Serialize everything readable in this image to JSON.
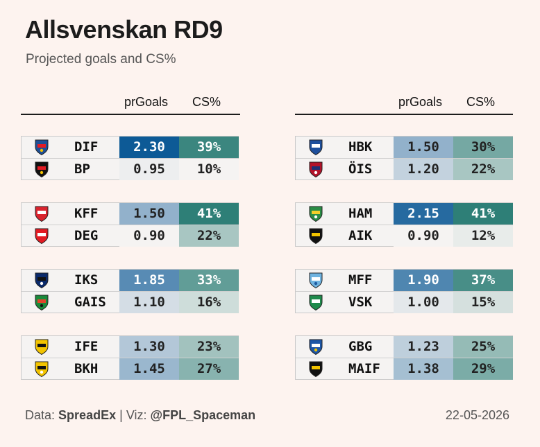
{
  "title": "Allsvenskan RD9",
  "subtitle": "Projected goals and CS%",
  "columns": {
    "goals": "prGoals",
    "cs": "CS%"
  },
  "footer": {
    "data_label": "Data:",
    "source": "SpreadEx",
    "sep": "|",
    "viz_label": "Viz:",
    "author": "@FPL_Spaceman",
    "date": "22-05-2026"
  },
  "chart_data": {
    "type": "table",
    "title": "Allsvenskan RD9",
    "subtitle": "Projected goals and CS%",
    "columns": [
      "prGoals",
      "CS%"
    ],
    "matches": [
      {
        "panel": "left",
        "slot": 0,
        "teams": [
          {
            "team": "DIF",
            "goals": "2.30",
            "cs": "39%",
            "g": 2.3,
            "c": 39,
            "logo": "djurgarden-crest-icon",
            "colors": [
              "#1d4f96",
              "#e31b23",
              "#f2c100"
            ]
          },
          {
            "team": "BP",
            "goals": "0.95",
            "cs": "10%",
            "g": 0.95,
            "c": 10,
            "logo": "brommapojkarna-crest-icon",
            "colors": [
              "#111111",
              "#e31b23",
              "#f2c100"
            ]
          }
        ]
      },
      {
        "panel": "left",
        "slot": 1,
        "teams": [
          {
            "team": "KFF",
            "goals": "1.50",
            "cs": "41%",
            "g": 1.5,
            "c": 41,
            "logo": "kalmar-crest-icon",
            "colors": [
              "#d9232d",
              "#ffffff",
              "#d9232d"
            ]
          },
          {
            "team": "DEG",
            "goals": "0.90",
            "cs": "22%",
            "g": 0.9,
            "c": 22,
            "logo": "degerfors-crest-icon",
            "colors": [
              "#e31b23",
              "#ffffff",
              "#e31b23"
            ]
          }
        ]
      },
      {
        "panel": "left",
        "slot": 2,
        "teams": [
          {
            "team": "IKS",
            "goals": "1.85",
            "cs": "33%",
            "g": 1.85,
            "c": 33,
            "logo": "sirius-crest-icon",
            "colors": [
              "#0b2a6b",
              "#111111",
              "#ffffff"
            ]
          },
          {
            "team": "GAIS",
            "goals": "1.10",
            "cs": "16%",
            "g": 1.1,
            "c": 16,
            "logo": "gais-crest-icon",
            "colors": [
              "#1a8a3a",
              "#e2432a",
              "#111111"
            ]
          }
        ]
      },
      {
        "panel": "left",
        "slot": 3,
        "teams": [
          {
            "team": "IFE",
            "goals": "1.30",
            "cs": "23%",
            "g": 1.3,
            "c": 23,
            "logo": "elfsborg-crest-icon",
            "colors": [
              "#f3c400",
              "#111111",
              "#f3c400"
            ]
          },
          {
            "team": "BKH",
            "goals": "1.45",
            "cs": "27%",
            "g": 1.45,
            "c": 27,
            "logo": "hacken-crest-icon",
            "colors": [
              "#f3c400",
              "#111111",
              "#ffffff"
            ]
          }
        ]
      },
      {
        "panel": "right",
        "slot": 0,
        "teams": [
          {
            "team": "HBK",
            "goals": "1.50",
            "cs": "30%",
            "g": 1.5,
            "c": 30,
            "logo": "halmstad-crest-icon",
            "colors": [
              "#1e4f9c",
              "#ffffff",
              "#1e4f9c"
            ]
          },
          {
            "team": "ÖIS",
            "goals": "1.20",
            "cs": "22%",
            "g": 1.2,
            "c": 22,
            "logo": "orgryte-crest-icon",
            "colors": [
              "#b3132a",
              "#1c2f73",
              "#ffffff"
            ]
          }
        ]
      },
      {
        "panel": "right",
        "slot": 1,
        "teams": [
          {
            "team": "HAM",
            "goals": "2.15",
            "cs": "41%",
            "g": 2.15,
            "c": 41,
            "logo": "hammarby-crest-icon",
            "colors": [
              "#2a8c45",
              "#f3cf2a",
              "#ffffff"
            ]
          },
          {
            "team": "AIK",
            "goals": "0.90",
            "cs": "12%",
            "g": 0.9,
            "c": 12,
            "logo": "aik-crest-icon",
            "colors": [
              "#111111",
              "#f3c400",
              "#111111"
            ]
          }
        ]
      },
      {
        "panel": "right",
        "slot": 2,
        "teams": [
          {
            "team": "MFF",
            "goals": "1.90",
            "cs": "37%",
            "g": 1.9,
            "c": 37,
            "logo": "malmo-crest-icon",
            "colors": [
              "#6fb3e0",
              "#ffffff",
              "#1d5aa0"
            ]
          },
          {
            "team": "VSK",
            "goals": "1.00",
            "cs": "15%",
            "g": 1.0,
            "c": 15,
            "logo": "vasteras-crest-icon",
            "colors": [
              "#1f8a4c",
              "#ffffff",
              "#1f8a4c"
            ]
          }
        ]
      },
      {
        "panel": "right",
        "slot": 3,
        "teams": [
          {
            "team": "GBG",
            "goals": "1.23",
            "cs": "25%",
            "g": 1.23,
            "c": 25,
            "logo": "goteborg-crest-icon",
            "colors": [
              "#1d56a6",
              "#ffffff",
              "#f3c400"
            ]
          },
          {
            "team": "MAIF",
            "goals": "1.38",
            "cs": "29%",
            "g": 1.38,
            "c": 29,
            "logo": "mjallby-crest-icon",
            "colors": [
              "#111111",
              "#f3c400",
              "#111111"
            ]
          }
        ]
      }
    ],
    "scales": {
      "goals": {
        "min": 0.9,
        "max": 2.3,
        "low": "#f5f3f2",
        "high": "#0d5a96"
      },
      "cs": {
        "min": 10,
        "max": 41,
        "low": "#f5f3f2",
        "high": "#2e7f77"
      }
    }
  }
}
